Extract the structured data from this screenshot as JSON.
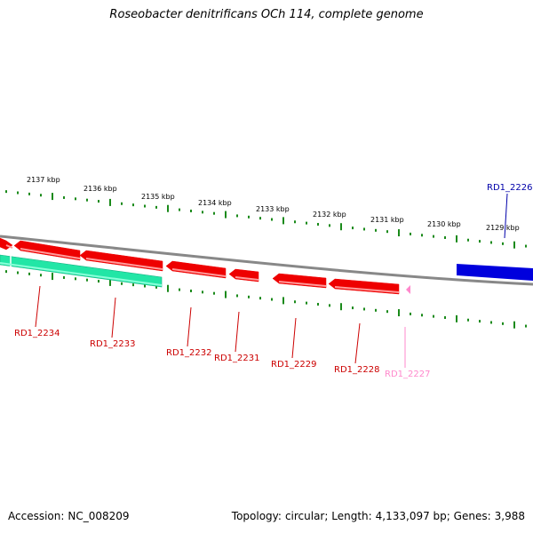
{
  "title": "Roseobacter denitrificans OCh 114, complete genome",
  "footer": {
    "accession_label": "Accession:",
    "accession": "NC_008209",
    "topology_label": "Topology:",
    "topology": "circular;",
    "length_label": "Length:",
    "length": "4,133,097 bp;",
    "genes_label": "Genes:",
    "genes": "3,988"
  },
  "colors": {
    "backbone": "#888888",
    "ticks": "#1a8a1a",
    "forward_gene": "#ee0000",
    "reverse_gene": "#ee0000",
    "rna_gene": "#22e6a6",
    "pseudo_gene": "#ff88cc",
    "highlight_gene": "#0000dd"
  },
  "kbp_labels": [
    "2137 kbp",
    "2136 kbp",
    "2135 kbp",
    "2134 kbp",
    "2133 kbp",
    "2132 kbp",
    "2131 kbp",
    "2130 kbp",
    "2129 kbp"
  ],
  "gene_labels": [
    {
      "text": "RD1_2226",
      "color": "#0000aa"
    },
    {
      "text": "RD1_2234",
      "color": "#cc0000"
    },
    {
      "text": "RD1_2233",
      "color": "#cc0000"
    },
    {
      "text": "RD1_2232",
      "color": "#cc0000"
    },
    {
      "text": "RD1_2231",
      "color": "#cc0000"
    },
    {
      "text": "RD1_2229",
      "color": "#cc0000"
    },
    {
      "text": "RD1_2228",
      "color": "#cc0000"
    },
    {
      "text": "RD1_2227",
      "color": "#ff88cc"
    }
  ]
}
